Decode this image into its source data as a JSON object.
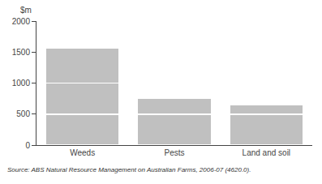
{
  "chart_data": {
    "type": "bar",
    "stacked": true,
    "categories": [
      "Weeds",
      "Pests",
      "Land and soil"
    ],
    "series": [
      {
        "color": "#c0c0c0",
        "values": [
          500,
          500,
          500
        ]
      },
      {
        "color": "#c0c0c0",
        "values": [
          500,
          260,
          150
        ]
      },
      {
        "color": "#c0c0c0",
        "values": [
          560,
          0,
          0
        ]
      }
    ],
    "ylabel": "$m",
    "annotations": [
      "Source: ABS Natural Resource Management on Australian Farms, 2006-07 (4620.0)."
    ],
    "ylim": [
      0,
      2000
    ],
    "yticks": [
      0,
      500,
      1000,
      1500,
      2000
    ],
    "grid": false
  }
}
